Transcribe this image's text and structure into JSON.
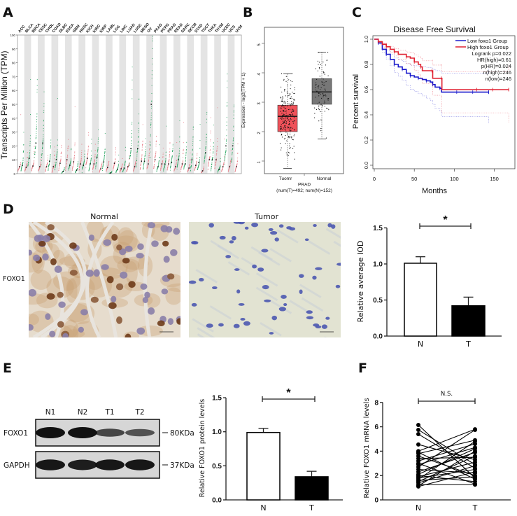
{
  "figure": {
    "panel_labels": [
      "A",
      "B",
      "C",
      "D",
      "E",
      "F"
    ],
    "d_images": {
      "normal_title": "Normal",
      "tumor_title": "Tumor",
      "row_label": "FOXO1"
    },
    "e_blot": {
      "lanes": [
        "N1",
        "N2",
        "T1",
        "T2"
      ],
      "rows": [
        {
          "label": "FOXO1",
          "marker": "80KDa",
          "intensities": [
            1.0,
            1.0,
            0.55,
            0.45
          ]
        },
        {
          "label": "GAPDH",
          "marker": "37KDa",
          "intensities": [
            0.95,
            0.9,
            0.95,
            0.95
          ]
        }
      ]
    }
  },
  "chart_data": [
    {
      "panel": "A",
      "type": "scatter",
      "ylabel": "Transcripts Per Million (TPM)",
      "ylim": [
        0,
        100
      ],
      "yticks": [
        "0",
        "10",
        "20",
        "30",
        "40",
        "50",
        "60",
        "70",
        "80",
        "90",
        "100"
      ],
      "colors": {
        "up": "#e05a6a",
        "down": "#22a05a",
        "none": "#222222",
        "tumor_dots": "#e8808a",
        "normal_dots": "#30a866"
      },
      "cancers": [
        {
          "name": "ACC",
          "status": "none",
          "tumor_median": 5,
          "normal_median": 6
        },
        {
          "name": "BLCA",
          "status": "down",
          "tumor_median": 4.5,
          "normal_median": 11
        },
        {
          "name": "BRCA",
          "status": "down",
          "tumor_median": 5.5,
          "normal_median": 22
        },
        {
          "name": "CESC",
          "status": "down",
          "tumor_median": 5,
          "normal_median": 22
        },
        {
          "name": "CHOL",
          "status": "none",
          "tumor_median": 5,
          "normal_median": 9
        },
        {
          "name": "COAD",
          "status": "none",
          "tumor_median": 5,
          "normal_median": 10
        },
        {
          "name": "DLBC",
          "status": "up",
          "tumor_median": 7.5,
          "normal_median": 1.5
        },
        {
          "name": "ESCA",
          "status": "none",
          "tumor_median": 10,
          "normal_median": 6
        },
        {
          "name": "GBM",
          "status": "up",
          "tumor_median": 8.5,
          "normal_median": 2.5
        },
        {
          "name": "HNSC",
          "status": "none",
          "tumor_median": 7,
          "normal_median": 6
        },
        {
          "name": "KICH",
          "status": "none",
          "tumor_median": 11,
          "normal_median": 7
        },
        {
          "name": "KIRC",
          "status": "none",
          "tumor_median": 7,
          "normal_median": 11.5
        },
        {
          "name": "KIRP",
          "status": "down",
          "tumor_median": 3.5,
          "normal_median": 8.5
        },
        {
          "name": "LAML",
          "status": "up",
          "tumor_median": 4.5,
          "normal_median": 0.5
        },
        {
          "name": "LGG",
          "status": "up",
          "tumor_median": 7.5,
          "normal_median": 3
        },
        {
          "name": "LIHC",
          "status": "none",
          "tumor_median": 3.5,
          "normal_median": 4
        },
        {
          "name": "LUAD",
          "status": "down",
          "tumor_median": 5,
          "normal_median": 18
        },
        {
          "name": "LUSC",
          "status": "down",
          "tumor_median": 5,
          "normal_median": 18
        },
        {
          "name": "MESO",
          "status": "none",
          "tumor_median": 9,
          "normal_median": 9
        },
        {
          "name": "OV",
          "status": "down",
          "tumor_median": 7,
          "normal_median": 50
        },
        {
          "name": "PAAD",
          "status": "up",
          "tumor_median": 10,
          "normal_median": 5
        },
        {
          "name": "PCPG",
          "status": "none",
          "tumor_median": 7,
          "normal_median": 7
        },
        {
          "name": "PRAD",
          "status": "none",
          "tumor_median": 7,
          "normal_median": 8
        },
        {
          "name": "READ",
          "status": "none",
          "tumor_median": 5,
          "normal_median": 10
        },
        {
          "name": "SARC",
          "status": "none",
          "tumor_median": 7,
          "normal_median": 7
        },
        {
          "name": "SKCM",
          "status": "down",
          "tumor_median": 4,
          "normal_median": 10
        },
        {
          "name": "STAD",
          "status": "none",
          "tumor_median": 6,
          "normal_median": 8
        },
        {
          "name": "TGCT",
          "status": "down",
          "tumor_median": 2,
          "normal_median": 15
        },
        {
          "name": "THCA",
          "status": "none",
          "tumor_median": 10,
          "normal_median": 10
        },
        {
          "name": "THYM",
          "status": "up",
          "tumor_median": 10,
          "normal_median": 3
        },
        {
          "name": "UCEC",
          "status": "down",
          "tumor_median": 5,
          "normal_median": 20
        },
        {
          "name": "UCS",
          "status": "down",
          "tumor_median": 5,
          "normal_median": 20
        },
        {
          "name": "UVM",
          "status": "none",
          "tumor_median": 5,
          "normal_median": null
        }
      ]
    },
    {
      "panel": "B",
      "type": "box",
      "ylabel": "Expression - log2(TPM + 1)",
      "xlabel": "PRAD",
      "subtitle": "(num(T)=492; num(N)=152)",
      "ylim": [
        0.57,
        5.55
      ],
      "yticks": [
        "1",
        "2",
        "3",
        "4",
        "5"
      ],
      "groups": [
        {
          "name": "Tuomr",
          "color": "#f0525a",
          "min": 0.75,
          "q1": 2.0,
          "median": 2.52,
          "q3": 2.9,
          "max": 3.97,
          "n": 492
        },
        {
          "name": "Normal",
          "color": "#777777",
          "min": 1.75,
          "q1": 2.93,
          "median": 3.35,
          "q3": 3.8,
          "max": 4.7,
          "n": 152
        }
      ]
    },
    {
      "panel": "C",
      "type": "line",
      "title": "Disease Free Survival",
      "xlabel": "Months",
      "ylabel": "Percent survival",
      "xlim": [
        0,
        175
      ],
      "ylim": [
        0,
        1.0
      ],
      "xticks": [
        "0",
        "50",
        "100",
        "150"
      ],
      "yticks": [
        "0.0",
        "0.2",
        "0.4",
        "0.6",
        "0.8",
        "1.0"
      ],
      "legend": {
        "position": "top-right",
        "stats": [
          "Logrank p=0.022",
          "HR(high)=0.61",
          "p(HR)=0.024",
          "n(high)=246",
          "n(low)=246"
        ]
      },
      "series": [
        {
          "name": "Low foxo1 Group",
          "color": "#1a1acc",
          "points": [
            [
              0,
              1.0
            ],
            [
              5,
              0.97
            ],
            [
              10,
              0.92
            ],
            [
              15,
              0.88
            ],
            [
              20,
              0.84
            ],
            [
              25,
              0.8
            ],
            [
              30,
              0.78
            ],
            [
              35,
              0.76
            ],
            [
              40,
              0.73
            ],
            [
              45,
              0.71
            ],
            [
              50,
              0.7
            ],
            [
              55,
              0.69
            ],
            [
              60,
              0.68
            ],
            [
              65,
              0.67
            ],
            [
              70,
              0.66
            ],
            [
              73,
              0.64
            ],
            [
              76,
              0.62
            ],
            [
              82,
              0.61
            ],
            [
              84,
              0.58
            ],
            [
              143,
              0.58
            ]
          ]
        },
        {
          "name": "High foxo1 Group",
          "color": "#e02030",
          "points": [
            [
              0,
              1.0
            ],
            [
              5,
              0.98
            ],
            [
              10,
              0.96
            ],
            [
              15,
              0.94
            ],
            [
              20,
              0.92
            ],
            [
              25,
              0.9
            ],
            [
              30,
              0.88
            ],
            [
              40,
              0.86
            ],
            [
              45,
              0.85
            ],
            [
              50,
              0.82
            ],
            [
              55,
              0.8
            ],
            [
              58,
              0.78
            ],
            [
              60,
              0.75
            ],
            [
              72,
              0.75
            ],
            [
              73,
              0.69
            ],
            [
              84,
              0.69
            ],
            [
              84.5,
              0.6
            ],
            [
              168,
              0.6
            ]
          ]
        }
      ]
    },
    {
      "panel": "D",
      "type": "bar",
      "ylabel": "Relative average IOD",
      "categories": [
        "N",
        "T"
      ],
      "values": [
        1.01,
        0.42
      ],
      "errors": [
        0.09,
        0.12
      ],
      "ylim": [
        0,
        1.5
      ],
      "yticks": [
        "0.0",
        "0.5",
        "1.0",
        "1.5"
      ],
      "significance": "*",
      "bar_colors": [
        "#ffffff",
        "#000000"
      ]
    },
    {
      "panel": "E",
      "type": "bar",
      "ylabel": "Relative FOXO1 protein levels",
      "categories": [
        "N",
        "T"
      ],
      "values": [
        0.99,
        0.34
      ],
      "errors": [
        0.06,
        0.08
      ],
      "ylim": [
        0,
        1.5
      ],
      "yticks": [
        "0.0",
        "0.5",
        "1.0",
        "1.5"
      ],
      "significance": "*",
      "bar_colors": [
        "#ffffff",
        "#000000"
      ]
    },
    {
      "panel": "F",
      "type": "scatter",
      "ylabel": "Relative FOXO1 mRNA levels",
      "categories": [
        "N",
        "T"
      ],
      "ylim": [
        0,
        8
      ],
      "yticks": [
        "0",
        "2",
        "4",
        "6",
        "8"
      ],
      "significance": "N.S.",
      "pairs": [
        [
          6.15,
          1.8
        ],
        [
          5.75,
          2.9
        ],
        [
          5.4,
          2.6
        ],
        [
          4.55,
          3.3
        ],
        [
          4.0,
          5.8
        ],
        [
          3.9,
          1.7
        ],
        [
          3.8,
          4.9
        ],
        [
          3.6,
          2.0
        ],
        [
          3.4,
          3.5
        ],
        [
          3.2,
          4.6
        ],
        [
          3.0,
          1.3
        ],
        [
          2.9,
          4.3
        ],
        [
          2.7,
          5.75
        ],
        [
          2.5,
          2.2
        ],
        [
          2.3,
          3.9
        ],
        [
          2.1,
          4.2
        ],
        [
          2.0,
          1.5
        ],
        [
          1.9,
          3.1
        ],
        [
          1.8,
          2.5
        ],
        [
          1.7,
          4.8
        ],
        [
          1.6,
          1.9
        ],
        [
          1.5,
          3.6
        ],
        [
          1.4,
          2.8
        ],
        [
          1.25,
          1.25
        ],
        [
          1.15,
          4.0
        ],
        [
          1.1,
          2.3
        ]
      ]
    }
  ]
}
